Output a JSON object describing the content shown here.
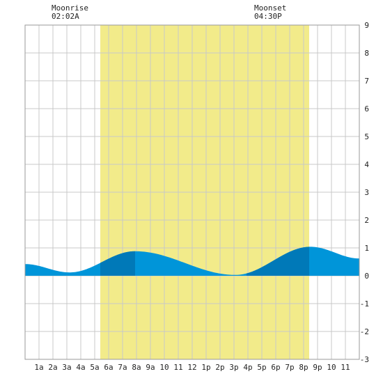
{
  "moon": {
    "rise_label": "Moonrise",
    "rise_time": "02:02A",
    "set_label": "Moonset",
    "set_time": "04:30P"
  },
  "chart_data": {
    "type": "area",
    "title": "",
    "xlabel": "",
    "ylabel": "",
    "ylim": [
      -3,
      9
    ],
    "xlim_hours": [
      0,
      24
    ],
    "x_tick_labels": [
      "1a",
      "2a",
      "3a",
      "4a",
      "5a",
      "6a",
      "7a",
      "8a",
      "9a",
      "10",
      "11",
      "12",
      "1p",
      "2p",
      "3p",
      "4p",
      "5p",
      "6p",
      "7p",
      "8p",
      "9p",
      "10",
      "11"
    ],
    "y_tick_labels": [
      "-3",
      "-2",
      "-1",
      "0",
      "1",
      "2",
      "3",
      "4",
      "5",
      "6",
      "7",
      "8",
      "9"
    ],
    "grid": true,
    "daylight_hours": [
      5.4,
      20.4
    ],
    "night_shade_hours": [
      [
        5.4,
        7.9
      ],
      [
        15.9,
        20.4
      ]
    ],
    "tide_extrema": [
      {
        "hour": 0.0,
        "height": 0.42
      },
      {
        "hour": 3.2,
        "height": 0.12
      },
      {
        "hour": 7.9,
        "height": 0.88
      },
      {
        "hour": 15.1,
        "height": 0.03
      },
      {
        "hour": 20.5,
        "height": 1.04
      },
      {
        "hour": 24.0,
        "height": 0.62
      }
    ],
    "colors": {
      "daylight": "#f2eb8a",
      "tide": "#0095d9",
      "tide_dark": "#0079b8",
      "grid": "#c8c8c8",
      "axis": "#9a9a9a"
    }
  }
}
